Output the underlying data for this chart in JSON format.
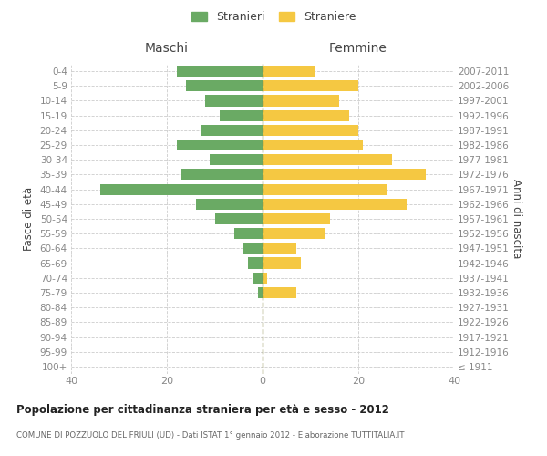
{
  "age_groups": [
    "100+",
    "95-99",
    "90-94",
    "85-89",
    "80-84",
    "75-79",
    "70-74",
    "65-69",
    "60-64",
    "55-59",
    "50-54",
    "45-49",
    "40-44",
    "35-39",
    "30-34",
    "25-29",
    "20-24",
    "15-19",
    "10-14",
    "5-9",
    "0-4"
  ],
  "birth_years": [
    "≤ 1911",
    "1912-1916",
    "1917-1921",
    "1922-1926",
    "1927-1931",
    "1932-1936",
    "1937-1941",
    "1942-1946",
    "1947-1951",
    "1952-1956",
    "1957-1961",
    "1962-1966",
    "1967-1971",
    "1972-1976",
    "1977-1981",
    "1982-1986",
    "1987-1991",
    "1992-1996",
    "1997-2001",
    "2002-2006",
    "2007-2011"
  ],
  "males": [
    0,
    0,
    0,
    0,
    0,
    1,
    2,
    3,
    4,
    6,
    10,
    14,
    34,
    17,
    11,
    18,
    13,
    9,
    12,
    16,
    18
  ],
  "females": [
    0,
    0,
    0,
    0,
    0,
    7,
    1,
    8,
    7,
    13,
    14,
    30,
    26,
    34,
    27,
    21,
    20,
    18,
    16,
    20,
    11
  ],
  "male_color": "#6aaa64",
  "female_color": "#f5c842",
  "background_color": "#ffffff",
  "grid_color": "#cccccc",
  "center_line_color": "#888844",
  "title": "Popolazione per cittadinanza straniera per età e sesso - 2012",
  "subtitle": "COMUNE DI POZZUOLO DEL FRIULI (UD) - Dati ISTAT 1° gennaio 2012 - Elaborazione TUTTITALIA.IT",
  "ylabel_left": "Fasce di età",
  "ylabel_right": "Anni di nascita",
  "header_left": "Maschi",
  "header_right": "Femmine",
  "legend_male": "Stranieri",
  "legend_female": "Straniere",
  "xlim": 40,
  "bar_height": 0.75,
  "tick_color": "#888888",
  "label_color": "#444444"
}
